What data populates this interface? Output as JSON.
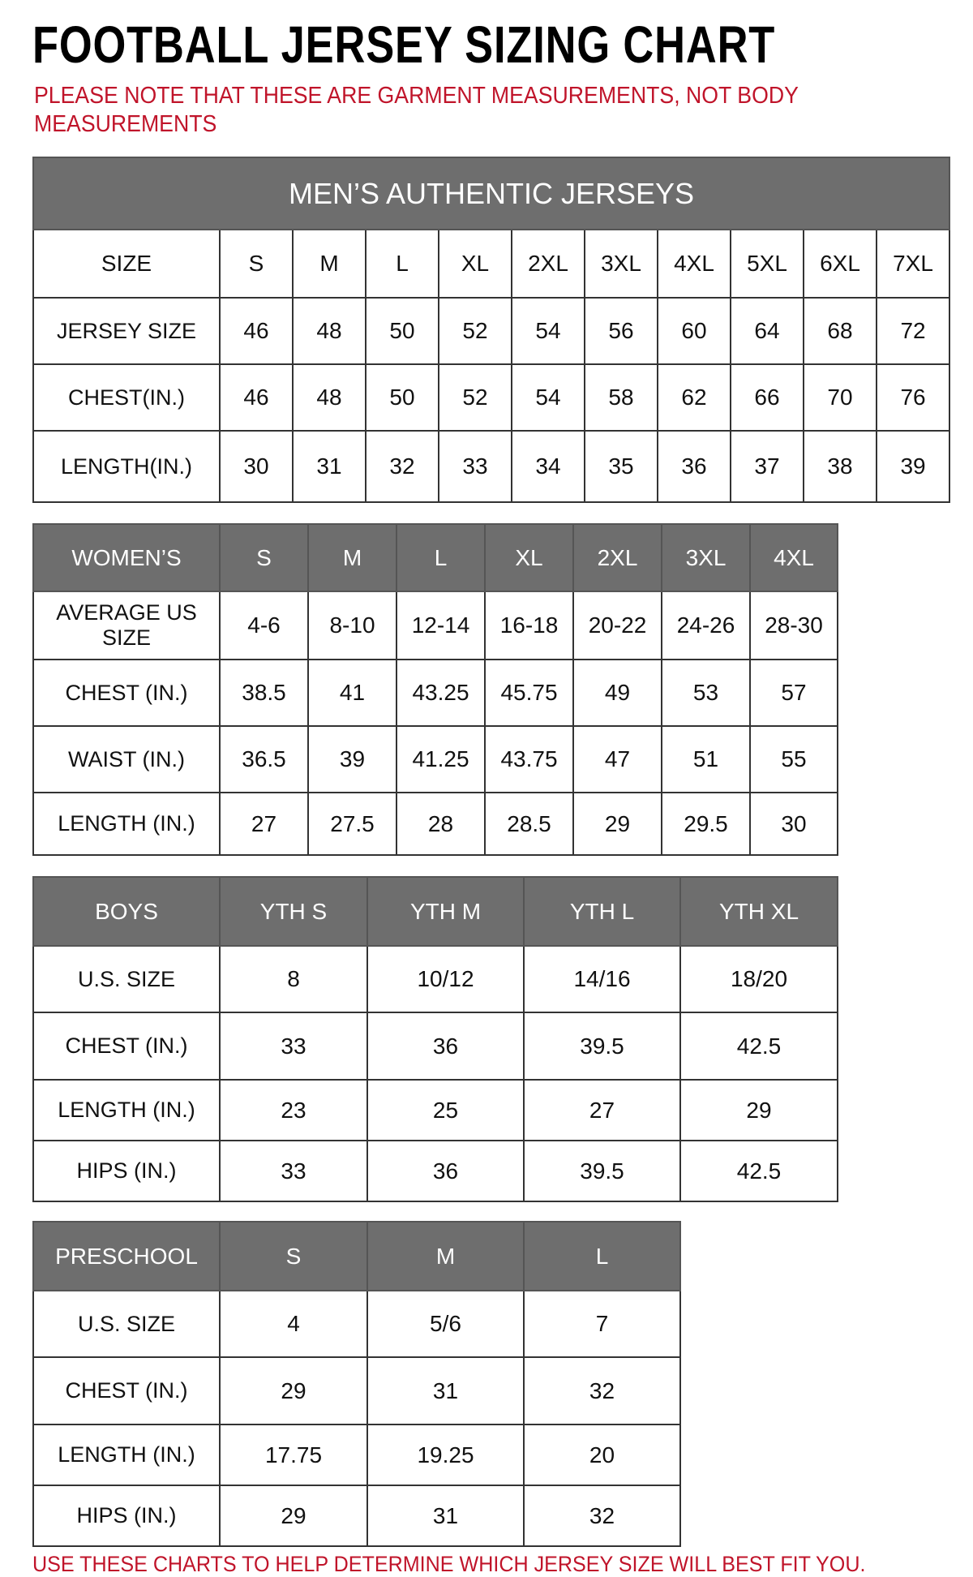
{
  "title": "FOOTBALL JERSEY SIZING CHART",
  "note": "PLEASE NOTE THAT THESE ARE GARMENT MEASUREMENTS, NOT BODY MEASUREMENTS",
  "footer": "USE THESE CHARTS TO HELP DETERMINE WHICH JERSEY SIZE WILL BEST FIT YOU.",
  "colors": {
    "header_bg": "#6e6e6e",
    "accent_red": "#c0142a"
  },
  "tables": [
    {
      "caption": "MEN’S AUTHENTIC JERSEYS",
      "header": [
        "SIZE",
        "S",
        "M",
        "L",
        "XL",
        "2XL",
        "3XL",
        "4XL",
        "5XL",
        "6XL",
        "7XL"
      ],
      "header_style": "plain",
      "rows": [
        [
          "JERSEY SIZE",
          "46",
          "48",
          "50",
          "52",
          "54",
          "56",
          "60",
          "64",
          "68",
          "72"
        ],
        [
          "CHEST(IN.)",
          "46",
          "48",
          "50",
          "52",
          "54",
          "58",
          "62",
          "66",
          "70",
          "76"
        ],
        [
          "LENGTH(IN.)",
          "30",
          "31",
          "32",
          "33",
          "34",
          "35",
          "36",
          "37",
          "38",
          "39"
        ]
      ]
    },
    {
      "header": [
        "WOMEN’S",
        "S",
        "M",
        "L",
        "XL",
        "2XL",
        "3XL",
        "4XL"
      ],
      "rows": [
        [
          "AVERAGE US SIZE",
          "4-6",
          "8-10",
          "12-14",
          "16-18",
          "20-22",
          "24-26",
          "28-30"
        ],
        [
          "CHEST (IN.)",
          "38.5",
          "41",
          "43.25",
          "45.75",
          "49",
          "53",
          "57"
        ],
        [
          "WAIST (IN.)",
          "36.5",
          "39",
          "41.25",
          "43.75",
          "47",
          "51",
          "55"
        ],
        [
          "LENGTH (IN.)",
          "27",
          "27.5",
          "28",
          "28.5",
          "29",
          "29.5",
          "30"
        ]
      ]
    },
    {
      "header": [
        "BOYS",
        "YTH S",
        "YTH M",
        "YTH L",
        "YTH XL"
      ],
      "rows": [
        [
          "U.S. SIZE",
          "8",
          "10/12",
          "14/16",
          "18/20"
        ],
        [
          "CHEST (IN.)",
          "33",
          "36",
          "39.5",
          "42.5"
        ],
        [
          "LENGTH (IN.)",
          "23",
          "25",
          "27",
          "29"
        ],
        [
          "HIPS (IN.)",
          "33",
          "36",
          "39.5",
          "42.5"
        ]
      ]
    },
    {
      "header": [
        "PRESCHOOL",
        "S",
        "M",
        "L"
      ],
      "rows": [
        [
          "U.S. SIZE",
          "4",
          "5/6",
          "7"
        ],
        [
          "CHEST (IN.)",
          "29",
          "31",
          "32"
        ],
        [
          "LENGTH (IN.)",
          "17.75",
          "19.25",
          "20"
        ],
        [
          "HIPS (IN.)",
          "29",
          "31",
          "32"
        ]
      ]
    }
  ]
}
